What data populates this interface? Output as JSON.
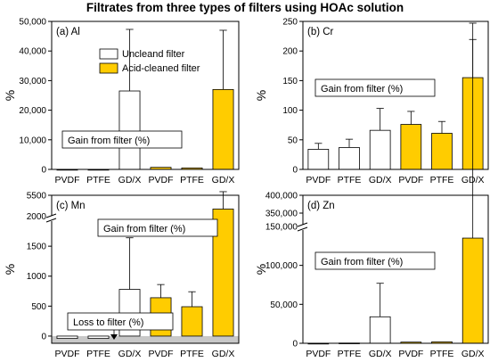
{
  "title": "Filtrates from three types of filters using HOAc solution",
  "legend": {
    "uncleaned": "Uncleand filter",
    "cleaned": "Acid-cleaned filter",
    "colors": {
      "uncleaned": "#ffffff",
      "cleaned": "#ffcc00",
      "loss_region": "#c8c8c8"
    }
  },
  "chart_data": [
    {
      "type": "bar",
      "panel_label": "(a) Al",
      "ylabel": "%",
      "annotation": "Gain from filter (%)",
      "categories": [
        "PVDF",
        "PTFE",
        "GD/X",
        "PVDF",
        "PTFE",
        "GD/X"
      ],
      "groups": [
        "uncleaned",
        "uncleaned",
        "uncleaned",
        "cleaned",
        "cleaned",
        "cleaned"
      ],
      "values": [
        0,
        0,
        26500,
        700,
        500,
        27000
      ],
      "errors": [
        0,
        0,
        20800,
        0,
        0,
        20000
      ],
      "ylim": [
        0,
        50000
      ],
      "yticks": [
        0,
        10000,
        20000,
        30000,
        40000,
        50000
      ],
      "ytick_labels": [
        "0",
        "10,000",
        "20,000",
        "30,000",
        "40,000",
        "50,000"
      ],
      "legend": "top-left"
    },
    {
      "type": "bar",
      "panel_label": "(b) Cr",
      "ylabel": "%",
      "annotation": "Gain from filter (%)",
      "categories": [
        "PVDF",
        "PTFE",
        "GD/X",
        "PVDF",
        "PTFE",
        "GD/X"
      ],
      "groups": [
        "uncleaned",
        "uncleaned",
        "uncleaned",
        "cleaned",
        "cleaned",
        "cleaned"
      ],
      "values": [
        34,
        37,
        66,
        76,
        61,
        155
      ],
      "errors": [
        10,
        14,
        37,
        22,
        20,
        92
      ],
      "ylim": [
        0,
        250
      ],
      "yticks": [
        0,
        50,
        100,
        150,
        200,
        250
      ],
      "ytick_labels": [
        "0",
        "50",
        "100",
        "150",
        "200",
        "250"
      ]
    },
    {
      "type": "bar",
      "panel_label": "(c) Mn",
      "ylabel": "%",
      "annotation": "Gain from filter (%)",
      "annotation_loss": "Loss to filter (%)",
      "categories": [
        "PVDF",
        "PTFE",
        "GD/X",
        "PVDF",
        "PTFE",
        "GD/X"
      ],
      "groups": [
        "uncleaned",
        "uncleaned",
        "uncleaned",
        "cleaned",
        "cleaned",
        "cleaned"
      ],
      "values": [
        -40,
        -40,
        780,
        640,
        490,
        2120
      ],
      "errors": [
        0,
        0,
        860,
        220,
        250,
        290
      ],
      "ylim": [
        -120,
        2350
      ],
      "axis_break": true,
      "yticks": [
        0,
        500,
        1000,
        1500,
        2000,
        5500
      ],
      "ytick_labels": [
        "0",
        "500",
        "1000",
        "1500",
        "2000",
        "5500"
      ]
    },
    {
      "type": "bar",
      "panel_label": "(d) Zn",
      "ylabel": "%",
      "annotation": "Gain from filter (%)",
      "categories": [
        "PVDF",
        "PTFE",
        "GD/X",
        "PVDF",
        "PTFE",
        "GD/X"
      ],
      "groups": [
        "uncleaned",
        "uncleaned",
        "uncleaned",
        "cleaned",
        "cleaned",
        "cleaned"
      ],
      "values": [
        0,
        300,
        34000,
        1500,
        1800,
        135000
      ],
      "errors": [
        0,
        0,
        43000,
        0,
        0,
        255000
      ],
      "ylim": [
        0,
        190000
      ],
      "axis_break": true,
      "yticks": [
        0,
        50000,
        100000,
        150000,
        400000
      ],
      "ytick_labels": [
        "0",
        "50,000",
        "100,000",
        "150,000",
        "400,000"
      ],
      "extra_tick": {
        "label": "350,000"
      }
    }
  ]
}
